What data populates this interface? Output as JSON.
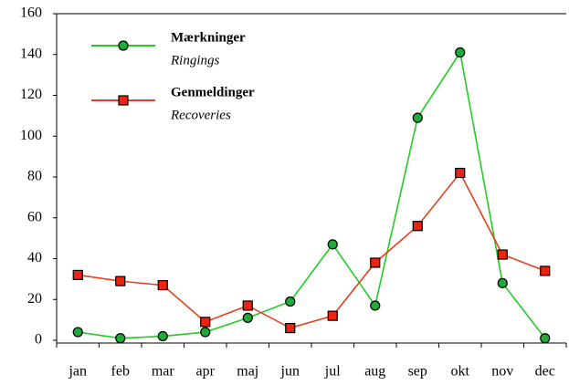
{
  "chart_data": {
    "type": "line",
    "categories": [
      "jan",
      "feb",
      "mar",
      "apr",
      "maj",
      "jun",
      "jul",
      "aug",
      "sep",
      "okt",
      "nov",
      "dec"
    ],
    "series": [
      {
        "name": "Mærkninger",
        "subname": "Ringings",
        "color": "#22cc22",
        "marker": "circle",
        "marker_color": "#1faa3a",
        "values": [
          4,
          1,
          2,
          4,
          11,
          19,
          47,
          17,
          109,
          141,
          28,
          1
        ]
      },
      {
        "name": "Genmeldinger",
        "subname": "Recoveries",
        "color": "#e8401c",
        "marker": "square",
        "marker_color": "#ee2211",
        "values": [
          32,
          29,
          27,
          9,
          17,
          6,
          12,
          38,
          56,
          82,
          42,
          34
        ]
      }
    ],
    "ylim": [
      0,
      160
    ],
    "yticks": [
      0,
      20,
      40,
      60,
      80,
      100,
      120,
      140,
      160
    ],
    "grid": false
  }
}
